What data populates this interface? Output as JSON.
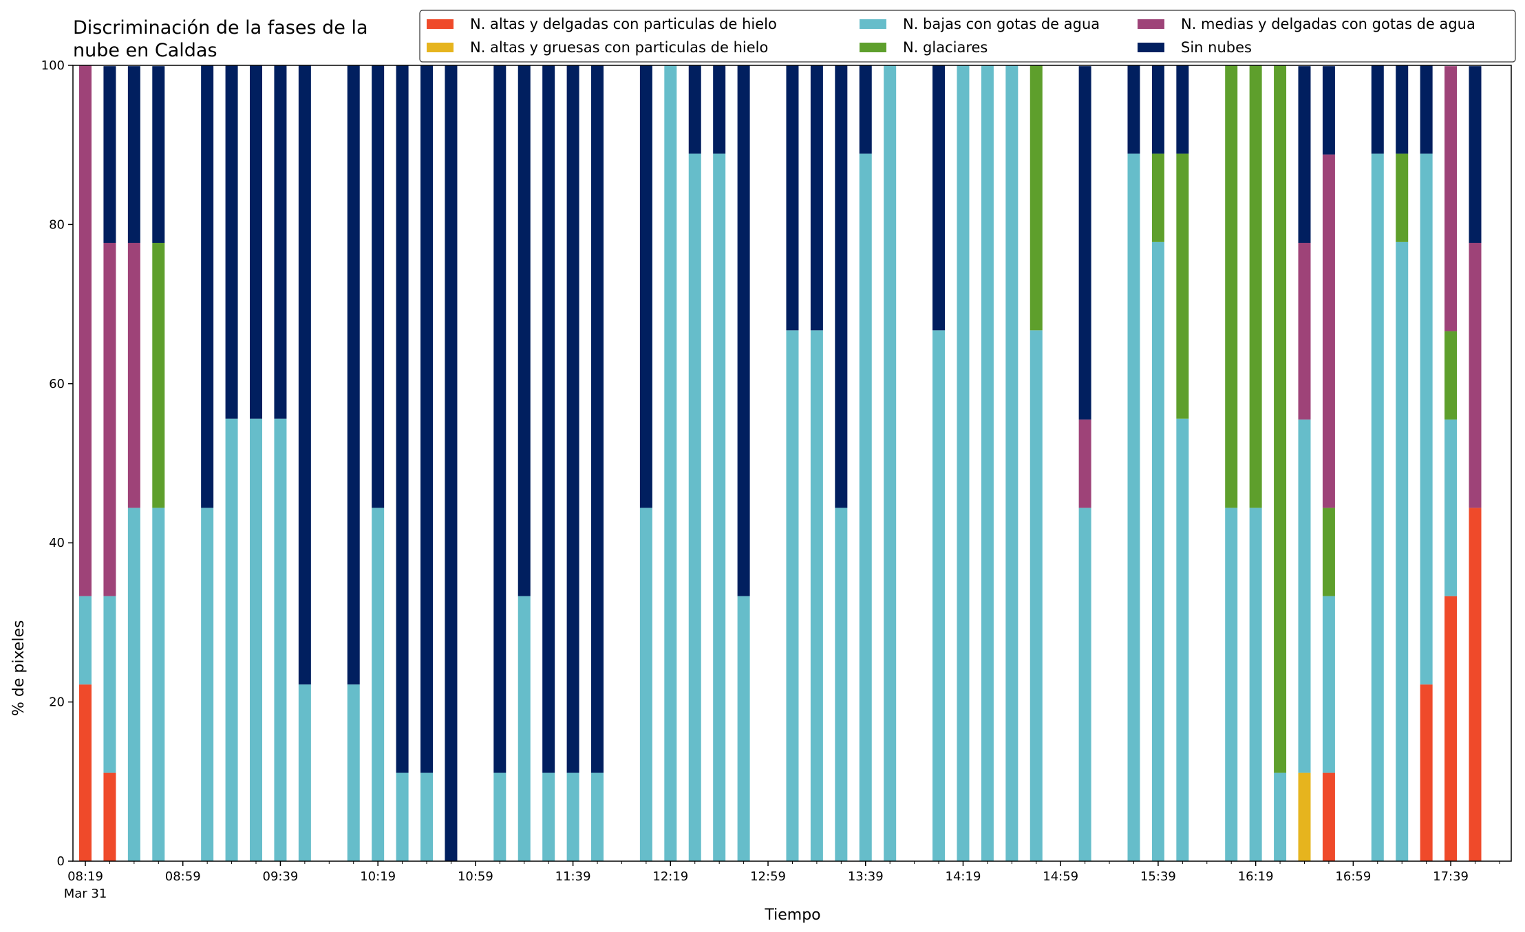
{
  "chart_data": {
    "type": "bar",
    "stacked": true,
    "title": [
      "Discriminación de la fases de la",
      "nube en Caldas"
    ],
    "xlabel": "Tiempo",
    "ylabel": "% de pixeles",
    "ylim": [
      0,
      100
    ],
    "yticks": [
      "0",
      "20",
      "40",
      "60",
      "80",
      "100"
    ],
    "xtick_labels": [
      "08:19",
      "08:59",
      "09:39",
      "10:19",
      "10:59",
      "11:39",
      "12:19",
      "12:59",
      "13:39",
      "14:19",
      "14:59",
      "15:39",
      "16:19",
      "16:59",
      "17:39"
    ],
    "xtick_sublabel": "Mar 31",
    "legend_position": "top-right",
    "legend_columns": 3,
    "series": [
      {
        "name": "N. altas y delgadas con particulas de hielo",
        "color": "#ef4a2a"
      },
      {
        "name": "N. altas y gruesas con particulas de hielo",
        "color": "#e6b41e"
      },
      {
        "name": "N. bajas con gotas de agua",
        "color": "#66bdca"
      },
      {
        "name": "N. glaciares",
        "color": "#5e9f2c"
      },
      {
        "name": "N. medias y delgadas con gotas de agua",
        "color": "#9e4378"
      },
      {
        "name": "Sin nubes",
        "color": "#011f5f"
      }
    ],
    "bars": [
      {
        "slot": 0,
        "values": [
          22.2,
          0,
          11.1,
          0,
          66.7,
          0
        ]
      },
      {
        "slot": 1,
        "values": [
          11.1,
          0,
          22.2,
          0,
          44.4,
          22.2
        ]
      },
      {
        "slot": 2,
        "values": [
          0,
          0,
          44.4,
          0,
          33.3,
          22.2
        ]
      },
      {
        "slot": 3,
        "values": [
          0,
          0,
          44.4,
          33.3,
          0,
          22.2
        ]
      },
      {
        "slot": 5,
        "values": [
          0,
          0,
          44.4,
          0,
          0,
          55.6
        ]
      },
      {
        "slot": 6,
        "values": [
          0,
          0,
          55.6,
          0,
          0,
          44.4
        ]
      },
      {
        "slot": 7,
        "values": [
          0,
          0,
          55.6,
          0,
          0,
          44.4
        ]
      },
      {
        "slot": 8,
        "values": [
          0,
          0,
          55.6,
          0,
          0,
          44.4
        ]
      },
      {
        "slot": 9,
        "values": [
          0,
          0,
          22.2,
          0,
          0,
          77.8
        ]
      },
      {
        "slot": 11,
        "values": [
          0,
          0,
          22.2,
          0,
          0,
          77.8
        ]
      },
      {
        "slot": 12,
        "values": [
          0,
          0,
          44.4,
          0,
          0,
          55.6
        ]
      },
      {
        "slot": 13,
        "values": [
          0,
          0,
          11.1,
          0,
          0,
          88.9
        ]
      },
      {
        "slot": 14,
        "values": [
          0,
          0,
          11.1,
          0,
          0,
          88.9
        ]
      },
      {
        "slot": 15,
        "values": [
          0,
          0,
          0,
          0,
          0,
          100
        ]
      },
      {
        "slot": 17,
        "values": [
          0,
          0,
          11.1,
          0,
          0,
          88.9
        ]
      },
      {
        "slot": 18,
        "values": [
          0,
          0,
          33.3,
          0,
          0,
          66.7
        ]
      },
      {
        "slot": 19,
        "values": [
          0,
          0,
          11.1,
          0,
          0,
          88.9
        ]
      },
      {
        "slot": 20,
        "values": [
          0,
          0,
          11.1,
          0,
          0,
          88.9
        ]
      },
      {
        "slot": 21,
        "values": [
          0,
          0,
          11.1,
          0,
          0,
          88.9
        ]
      },
      {
        "slot": 23,
        "values": [
          0,
          0,
          44.4,
          0,
          0,
          55.6
        ]
      },
      {
        "slot": 24,
        "values": [
          0,
          0,
          100,
          0,
          0,
          0
        ]
      },
      {
        "slot": 25,
        "values": [
          0,
          0,
          88.9,
          0,
          0,
          11.1
        ]
      },
      {
        "slot": 26,
        "values": [
          0,
          0,
          88.9,
          0,
          0,
          11.1
        ]
      },
      {
        "slot": 27,
        "values": [
          0,
          0,
          33.3,
          0,
          0,
          66.7
        ]
      },
      {
        "slot": 29,
        "values": [
          0,
          0,
          66.7,
          0,
          0,
          33.3
        ]
      },
      {
        "slot": 30,
        "values": [
          0,
          0,
          66.7,
          0,
          0,
          33.3
        ]
      },
      {
        "slot": 31,
        "values": [
          0,
          0,
          44.4,
          0,
          0,
          55.6
        ]
      },
      {
        "slot": 32,
        "values": [
          0,
          0,
          88.9,
          0,
          0,
          11.1
        ]
      },
      {
        "slot": 33,
        "values": [
          0,
          0,
          100,
          0,
          0,
          0
        ]
      },
      {
        "slot": 35,
        "values": [
          0,
          0,
          66.7,
          0,
          0,
          33.3
        ]
      },
      {
        "slot": 36,
        "values": [
          0,
          0,
          100,
          0,
          0,
          0
        ]
      },
      {
        "slot": 37,
        "values": [
          0,
          0,
          100,
          0,
          0,
          0
        ]
      },
      {
        "slot": 38,
        "values": [
          0,
          0,
          100,
          0,
          0,
          0
        ]
      },
      {
        "slot": 39,
        "values": [
          0,
          0,
          66.7,
          33.3,
          0,
          0
        ]
      },
      {
        "slot": 41,
        "values": [
          0,
          0,
          44.4,
          0,
          11.1,
          44.4
        ]
      },
      {
        "slot": 43,
        "values": [
          0,
          0,
          88.9,
          0,
          0,
          11.1
        ]
      },
      {
        "slot": 44,
        "values": [
          0,
          0,
          77.8,
          11.1,
          0,
          11.1
        ]
      },
      {
        "slot": 45,
        "values": [
          0,
          0,
          55.6,
          33.3,
          0,
          11.1
        ]
      },
      {
        "slot": 47,
        "values": [
          0,
          0,
          44.4,
          55.6,
          0,
          0
        ]
      },
      {
        "slot": 48,
        "values": [
          0,
          0,
          44.4,
          55.6,
          0,
          0
        ]
      },
      {
        "slot": 49,
        "values": [
          0,
          0,
          11.1,
          88.9,
          0,
          0
        ]
      },
      {
        "slot": 50,
        "values": [
          0,
          11.1,
          44.4,
          0,
          22.2,
          22.2
        ]
      },
      {
        "slot": 51,
        "values": [
          11.1,
          0,
          22.2,
          11.1,
          44.4,
          11.1
        ]
      },
      {
        "slot": 53,
        "values": [
          0,
          0,
          88.9,
          0,
          0,
          11.1
        ]
      },
      {
        "slot": 54,
        "values": [
          0,
          0,
          77.8,
          11.1,
          0,
          11.1
        ]
      },
      {
        "slot": 55,
        "values": [
          22.2,
          0,
          66.7,
          0,
          0,
          11.1
        ]
      },
      {
        "slot": 56,
        "values": [
          33.3,
          0,
          22.2,
          11.1,
          33.3,
          0
        ]
      },
      {
        "slot": 57,
        "values": [
          44.4,
          0,
          0,
          0,
          33.3,
          22.2
        ]
      }
    ]
  }
}
